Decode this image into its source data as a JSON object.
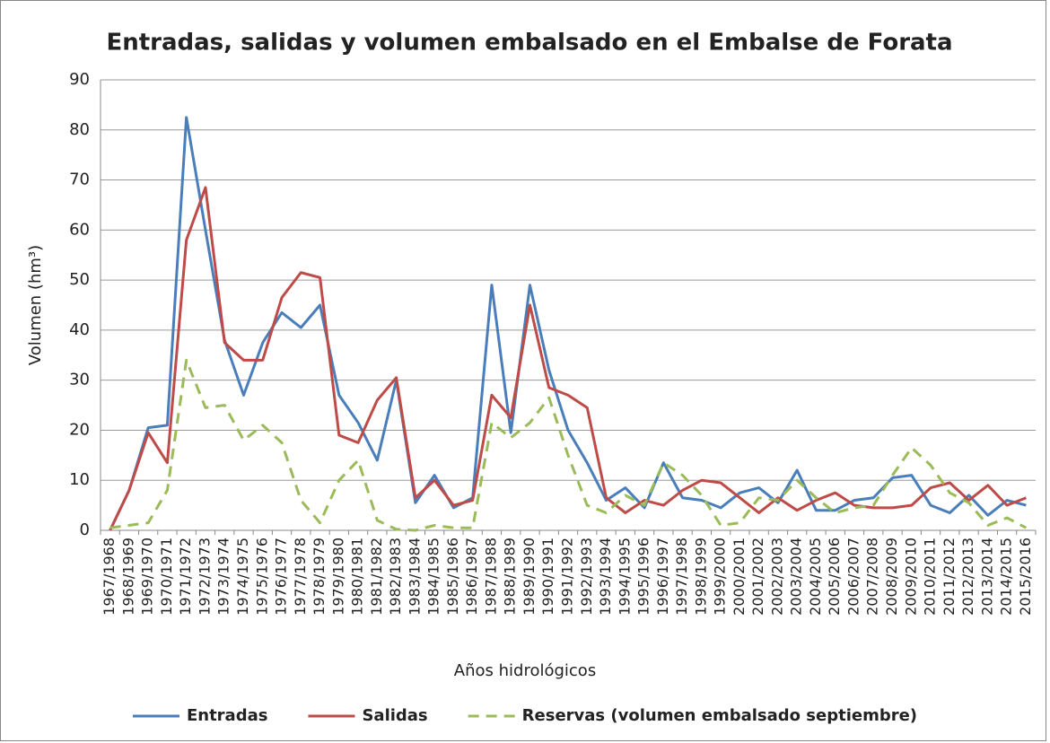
{
  "chart_data": {
    "type": "line",
    "title": "Entradas, salidas y volumen embalsado en el Embalse de Forata",
    "x_label": "Años hidrológicos",
    "y_label": "Volumen (hm³)",
    "categories": [
      "1967/1968",
      "1968/1969",
      "1969/1970",
      "1970/1971",
      "1971/1972",
      "1972/1973",
      "1973/1974",
      "1974/1975",
      "1975/1976",
      "1976/1977",
      "1977/1978",
      "1978/1979",
      "1979/1980",
      "1980/1981",
      "1981/1982",
      "1982/1983",
      "1983/1984",
      "1984/1985",
      "1985/1986",
      "1986/1987",
      "1987/1988",
      "1988/1989",
      "1989/1990",
      "1990/1991",
      "1991/1992",
      "1992/1993",
      "1993/1994",
      "1994/1995",
      "1995/1996",
      "1996/1997",
      "1997/1998",
      "1998/1999",
      "1999/2000",
      "2000/2001",
      "2001/2002",
      "2002/2003",
      "2003/2004",
      "2004/2005",
      "2005/2006",
      "2006/2007",
      "2007/2008",
      "2008/2009",
      "2009/2010",
      "2010/2011",
      "2011/2012",
      "2012/2013",
      "2013/2014",
      "2014/2015",
      "2015/2016"
    ],
    "series": [
      {
        "name": "Entradas",
        "color": "#4a7ebb",
        "dashed": false,
        "values": [
          0,
          8,
          20.5,
          21,
          82.5,
          60,
          38,
          27,
          37.5,
          43.5,
          40.5,
          45,
          27,
          21.5,
          14,
          30,
          5.5,
          11,
          4.5,
          6.5,
          49,
          19.5,
          49,
          32,
          20,
          13.5,
          6,
          8.5,
          4.5,
          13.5,
          6.5,
          6,
          4.5,
          7.5,
          8.5,
          5.5,
          12,
          4,
          4,
          6,
          6.5,
          10.5,
          11,
          5,
          3.5,
          7,
          3,
          6,
          5
        ]
      },
      {
        "name": "Salidas",
        "color": "#be4b48",
        "dashed": false,
        "values": [
          0,
          8,
          19.5,
          13.5,
          58,
          68.5,
          37.5,
          34,
          34,
          46.5,
          51.5,
          50.5,
          19,
          17.5,
          26,
          30.5,
          6.5,
          10,
          5,
          6,
          27,
          22.5,
          45,
          28.5,
          27,
          24.5,
          6.5,
          3.5,
          6,
          5,
          8,
          10,
          9.5,
          6.5,
          3.5,
          6.5,
          4,
          6,
          7.5,
          5,
          4.5,
          4.5,
          5,
          8.5,
          9.5,
          6,
          9,
          5,
          6.5
        ]
      },
      {
        "name": "Reservas (volumen embalsado septiembre)",
        "color": "#9bbb59",
        "dashed": true,
        "values": [
          0.5,
          1,
          1.5,
          8,
          34,
          24.5,
          25,
          18,
          21,
          17.5,
          6,
          1.5,
          10,
          14,
          2,
          0.2,
          0,
          1,
          0.5,
          0.5,
          21.5,
          18.5,
          21.5,
          26.5,
          15,
          5,
          3.5,
          7,
          5,
          13.5,
          11,
          7,
          1,
          1.5,
          6.5,
          6,
          10,
          6.5,
          3.5,
          4.5,
          5,
          11,
          16.5,
          13,
          7.5,
          5.5,
          1,
          2.5,
          0.5
        ]
      }
    ],
    "ylim": [
      0,
      90
    ],
    "yticks": [
      0,
      10,
      20,
      30,
      40,
      50,
      60,
      70,
      80,
      90
    ],
    "grid": true,
    "legend": "bottom"
  }
}
